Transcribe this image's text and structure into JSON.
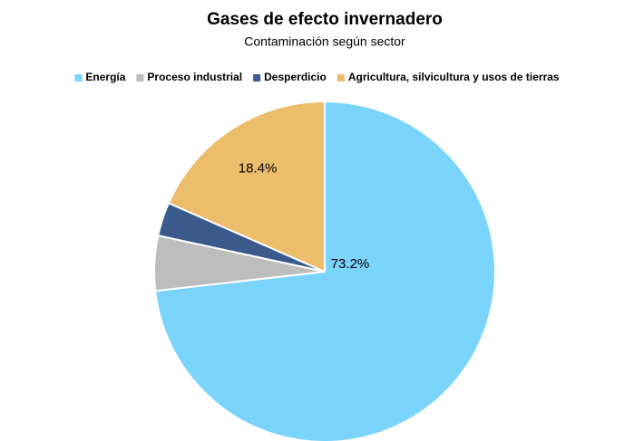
{
  "chart_data": {
    "type": "pie",
    "title": "Gases de efecto invernadero",
    "subtitle": "Contaminación según sector",
    "categories": [
      "Energía",
      "Proceso industrial",
      "Desperdicio",
      "Agricultura, silvicultura y usos de tierras"
    ],
    "values": [
      73.2,
      5.2,
      3.2,
      18.4
    ],
    "value_labels": [
      "73.2%",
      null,
      null,
      "18.4%"
    ],
    "colors": [
      "#7bd4fb",
      "#bdbdbd",
      "#3a5a8c",
      "#ecbd6b"
    ],
    "legend": "top"
  }
}
